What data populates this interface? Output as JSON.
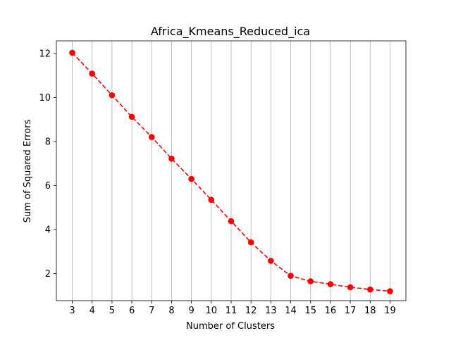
{
  "chart_data": {
    "type": "line",
    "title": "Africa_Kmeans_Reduced_ica",
    "xlabel": "Number of Clusters",
    "ylabel": "Sum of Squared Errors",
    "x": [
      3,
      4,
      5,
      6,
      7,
      8,
      9,
      10,
      11,
      12,
      13,
      14,
      15,
      16,
      17,
      18,
      19
    ],
    "series": [
      {
        "values": [
          12.03,
          11.08,
          10.1,
          9.12,
          8.2,
          7.22,
          6.3,
          5.35,
          4.38,
          3.42,
          2.58,
          1.9,
          1.65,
          1.52,
          1.38,
          1.28,
          1.2
        ],
        "color": "#ff0000",
        "line_style": "dashed",
        "marker": "circle"
      }
    ],
    "xticks": [
      "3",
      "4",
      "5",
      "6",
      "7",
      "8",
      "9",
      "10",
      "11",
      "12",
      "13",
      "14",
      "15",
      "16",
      "17",
      "18",
      "19"
    ],
    "yticks": [
      2,
      4,
      6,
      8,
      10,
      12
    ],
    "xlim": [
      2.2,
      19.8
    ],
    "ylim": [
      0.77,
      12.57
    ],
    "grid": "x-only",
    "grid_color": "#b0b0b0"
  }
}
